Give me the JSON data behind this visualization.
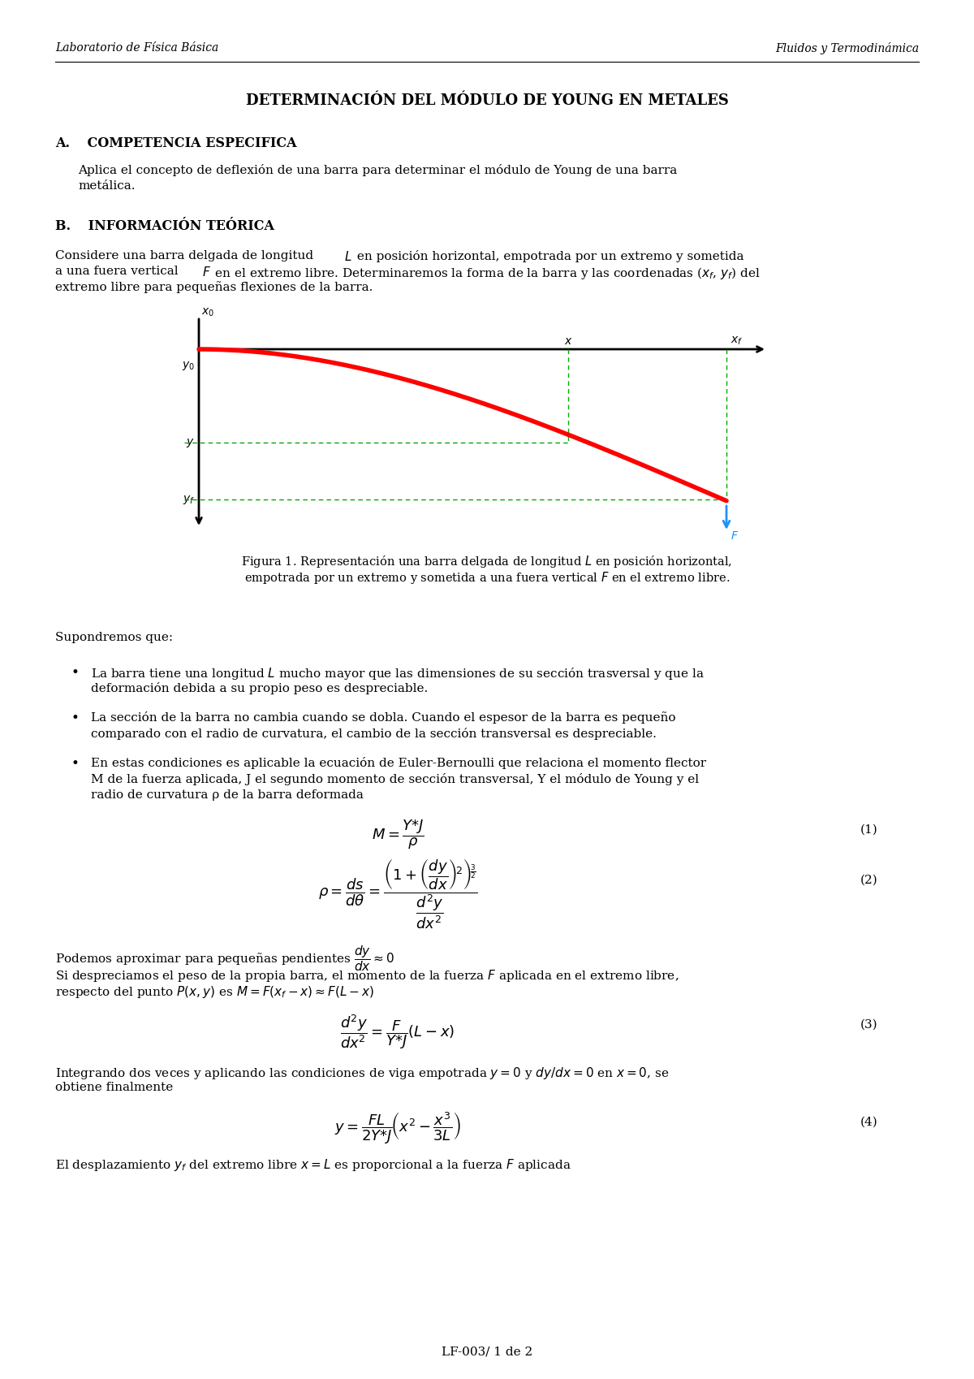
{
  "header_left": "Laboratorio de Física Básica",
  "header_right": "Fluidos y Termodinámica",
  "title": "DETERMINACIÓN DEL MÓDULO DE YOUNG EN METALES",
  "section_a_title": "A.  COMPETENCIA ESPECIFICA",
  "section_a_text1": "Aplica el concepto de deflexión de una barra para determinar el módulo de Young de una barra",
  "section_a_text2": "metálica.",
  "section_b_title": "B.  INFORMACIÓN TEÓRICA",
  "section_b_line1": "Considere una barra delgada de longitud ",
  "section_b_line1b": " en posición horizontal, empotrada por un extremo y sometida",
  "section_b_line2": "a una fuera vertical ",
  "section_b_line2b": " en el extremo libre. Determinaremos la forma de la barra y las coordenadas (",
  "section_b_line2c": ") del",
  "section_b_line3": "extremo libre para pequeñas flexiones de la barra.",
  "footer": "LF-003/ 1 de 2",
  "background_color": "#ffffff",
  "text_color": "#000000"
}
